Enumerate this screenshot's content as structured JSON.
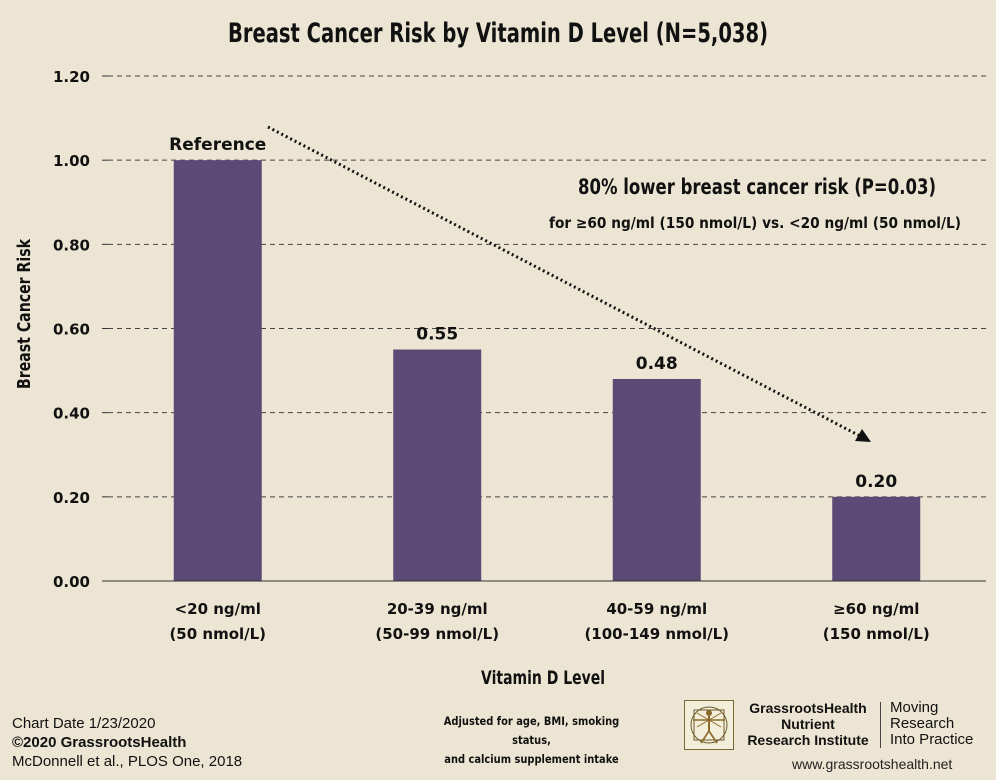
{
  "chart_data": {
    "type": "bar",
    "title": "Breast Cancer Risk by Vitamin D Level (N=5,038)",
    "xlabel": "Vitamin D Level",
    "ylabel": "Breast Cancer Risk",
    "ylim": [
      0,
      1.2
    ],
    "yticks": [
      "0.00",
      "0.20",
      "0.40",
      "0.60",
      "0.80",
      "1.00",
      "1.20"
    ],
    "grid": true,
    "categories": [
      [
        "<20 ng/ml",
        "(50 nmol/L)"
      ],
      [
        "20-39 ng/ml",
        "(50-99 nmol/L)"
      ],
      [
        "40-59 ng/ml",
        "(100-149 nmol/L)"
      ],
      [
        "≥60 ng/ml",
        "(150 nmol/L)"
      ]
    ],
    "values": [
      1.0,
      0.55,
      0.48,
      0.2
    ],
    "data_labels": [
      "Reference",
      "0.55",
      "0.48",
      "0.20"
    ],
    "bar_color": "#5b4a76",
    "annotation": {
      "headline": "80% lower breast cancer risk (P=0.03)",
      "detail": "for ≥60 ng/ml (150 nmol/L) vs. <20 ng/ml (50 nmol/L)"
    }
  },
  "footer": {
    "chart_date": "Chart Date 1/23/2020",
    "copyright": "©2020 GrassrootsHealth",
    "citation": "McDonnell et al., PLOS One, 2018",
    "adjustment_line1": "Adjusted for age, BMI, smoking status,",
    "adjustment_line2": "and calcium supplement intake",
    "org_line1": "GrassrootsHealth",
    "org_line2": "Nutrient",
    "org_line3": "Research Institute",
    "tagline_line1": "Moving",
    "tagline_line2": "Research",
    "tagline_line3": "Into Practice",
    "website": "www.grassrootshealth.net"
  }
}
